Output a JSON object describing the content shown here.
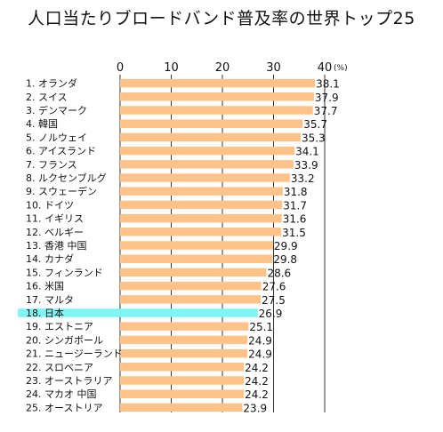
{
  "title": "人口当たりブロードバンド普及率の世界トップ25",
  "chart_data": {
    "type": "bar",
    "orientation": "horizontal",
    "title": "人口当たりブロードバンド普及率の世界トップ25",
    "unit": "(%)",
    "xlim": [
      0,
      40
    ],
    "ticks": [
      0,
      10,
      20,
      30,
      40
    ],
    "grid": true,
    "highlight_category": "18. 日本",
    "colors": {
      "bar": "#ffc389",
      "highlight": "#7ff5f5",
      "grid": "#333333"
    },
    "categories": [
      "1. オランダ",
      "2. スイス",
      "3. デンマーク",
      "4. 韓国",
      "5. ノルウェイ",
      "6. アイスランド",
      "7. フランス",
      "8. ルクセンブルグ",
      "9. スウェーデン",
      "10. ドイツ",
      "11. イギリス",
      "12. ベルギー",
      "13. 香港 中国",
      "14. カナダ",
      "15. フィンランド",
      "16. 米国",
      "17. マルタ",
      "18. 日本",
      "19. エストニア",
      "20. シンガポール",
      "21. ニュージーランド",
      "22. スロベニア",
      "23. オーストラリア",
      "24. マカオ 中国",
      "25. オーストリア"
    ],
    "values": [
      38.1,
      37.9,
      37.7,
      35.7,
      35.3,
      34.1,
      33.9,
      33.2,
      31.8,
      31.7,
      31.6,
      31.5,
      29.9,
      29.8,
      28.6,
      27.6,
      27.5,
      26.9,
      25.1,
      24.9,
      24.9,
      24.2,
      24.2,
      24.2,
      23.9
    ],
    "value_labels": [
      "38.1",
      "37.9",
      "37.7",
      "35.7",
      "35.3",
      "34.1",
      "33.9",
      "33.2",
      "31.8",
      "31.7",
      "31.6",
      "31.5",
      "29.9",
      "29.8",
      "28.6",
      "27.6",
      "27.5",
      "26.9",
      "25.1",
      "24.9",
      "24.9",
      "24.2",
      "24.2",
      "24.2",
      "23.9"
    ]
  }
}
